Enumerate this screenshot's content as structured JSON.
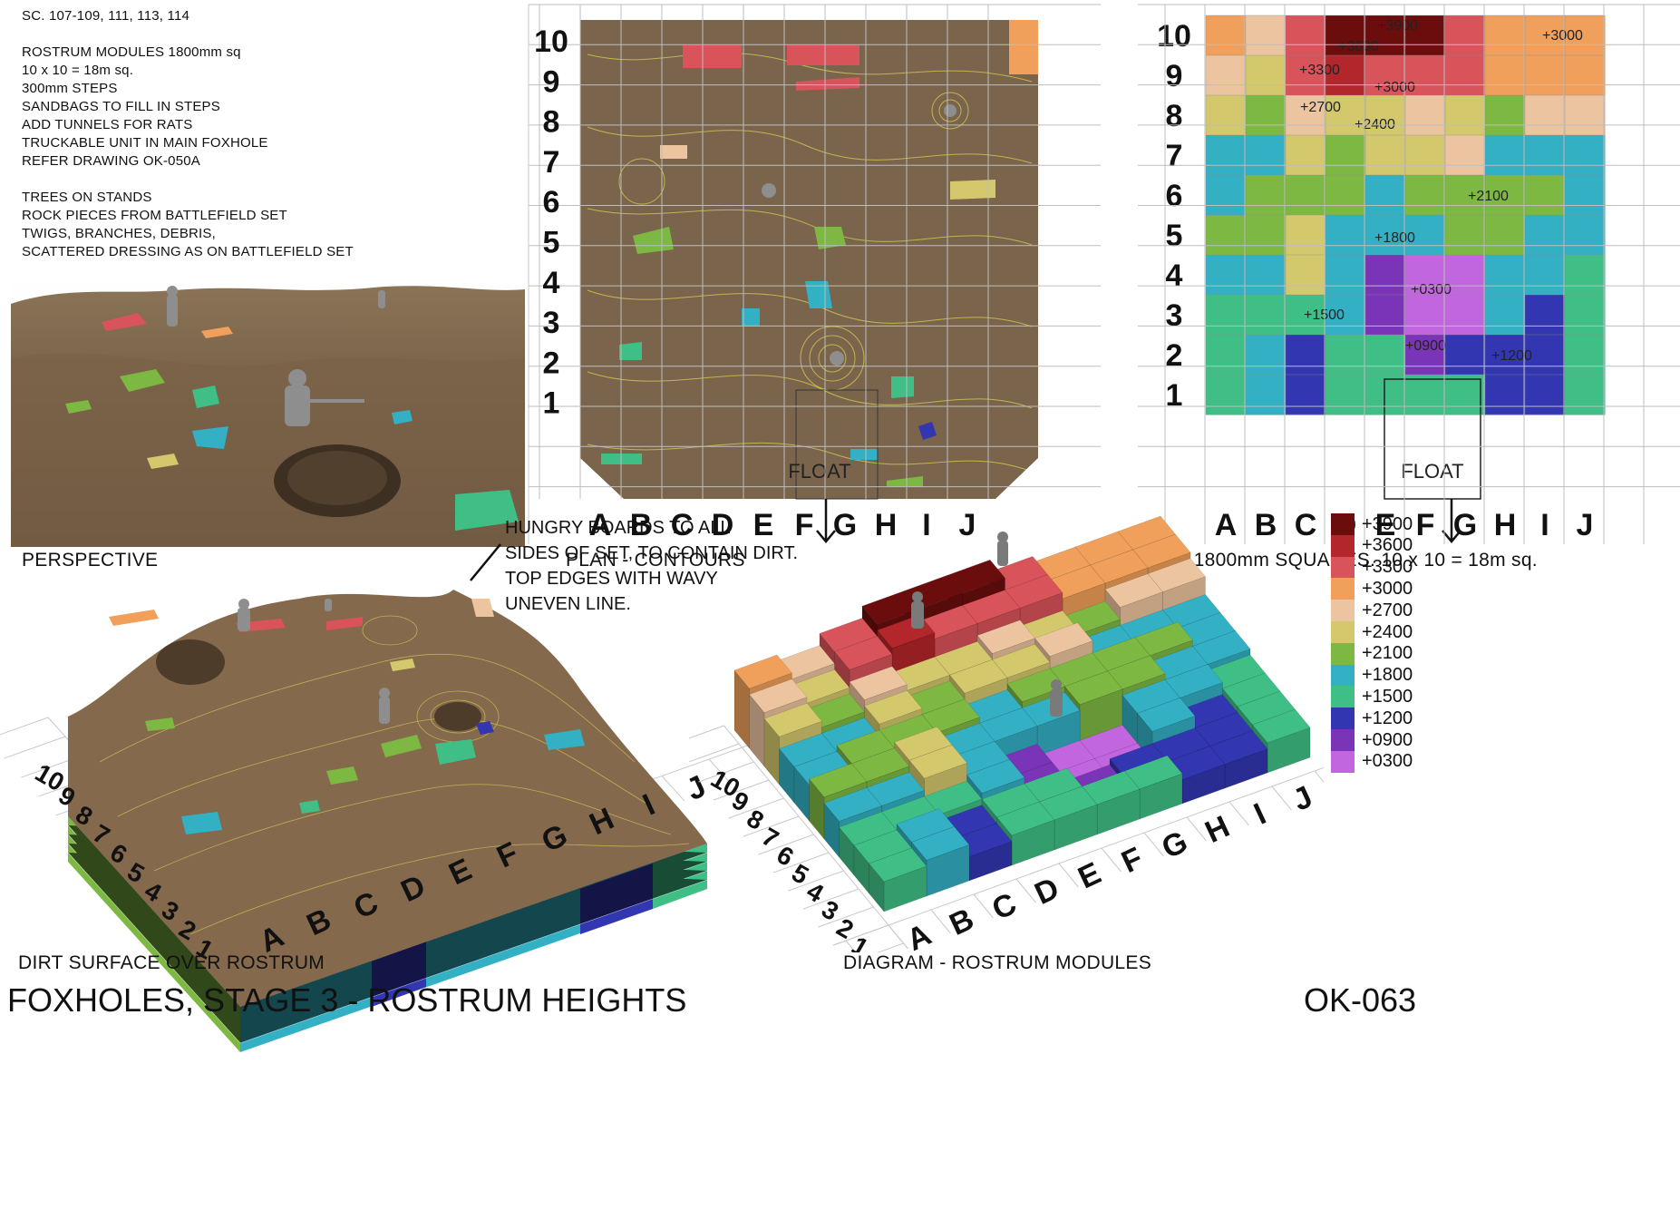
{
  "notes": [
    "SC. 107-109, 111, 113, 114",
    "",
    "ROSTRUM MODULES 1800mm sq",
    "10 x 10 = 18m sq.",
    "300mm STEPS",
    "SANDBAGS TO FILL IN STEPS",
    "ADD TUNNELS FOR RATS",
    "TRUCKABLE UNIT IN MAIN FOXHOLE",
    "REFER DRAWING OK-050A",
    "",
    "TREES ON STANDS",
    "ROCK PIECES FROM BATTLEFIELD SET",
    "TWIGS, BRANCHES, DEBRIS,",
    "SCATTERED DRESSING AS ON BATTLEFIELD SET"
  ],
  "panels": {
    "perspective": "PERSPECTIVE",
    "plan_contours": "PLAN - CONTOURS",
    "plan_squares": "PLAN - 1800mm SQUARES. 10 x 10 = 18m sq.",
    "dirt_surface": "DIRT SURFACE OVER ROSTRUM",
    "diagram": "DIAGRAM - ROSTRUM MODULES"
  },
  "grid": {
    "columns": [
      "A",
      "B",
      "C",
      "D",
      "E",
      "F",
      "G",
      "H",
      "I",
      "J"
    ],
    "rows": [
      "10",
      "9",
      "8",
      "7",
      "6",
      "5",
      "4",
      "3",
      "2",
      "1"
    ]
  },
  "float_label": "FLOAT",
  "callout": [
    "HUNGRY BOARDS TO ALL",
    "SIDES OF SET, TO CONTAIN DIRT.",
    "TOP EDGES WITH WAVY",
    "UNEVEN LINE."
  ],
  "height_labels": [
    "+3900",
    "+3600",
    "+3000",
    "+3300",
    "+3000",
    "+2700",
    "+2400",
    "+2100",
    "+1800",
    "+0300",
    "+1500",
    "+0900",
    "+1200"
  ],
  "legend": [
    {
      "label": "+3900",
      "color": "#6b0d0d"
    },
    {
      "label": "+3600",
      "color": "#b3262b"
    },
    {
      "label": "+3300",
      "color": "#d9535a"
    },
    {
      "label": "+3000",
      "color": "#f0a05a"
    },
    {
      "label": "+2700",
      "color": "#edc4a0"
    },
    {
      "label": "+2400",
      "color": "#d4c86c"
    },
    {
      "label": "+2100",
      "color": "#7db842"
    },
    {
      "label": "+1800",
      "color": "#33b0c4"
    },
    {
      "label": "+1500",
      "color": "#3fbf86"
    },
    {
      "label": "+1200",
      "color": "#3236b0"
    },
    {
      "label": "+0900",
      "color": "#7a34b8"
    },
    {
      "label": "+0300",
      "color": "#c266e0"
    }
  ],
  "footer": {
    "title": "FOXHOLES, STAGE 3 - ROSTRUM HEIGHTS",
    "sheet": "OK-063"
  }
}
